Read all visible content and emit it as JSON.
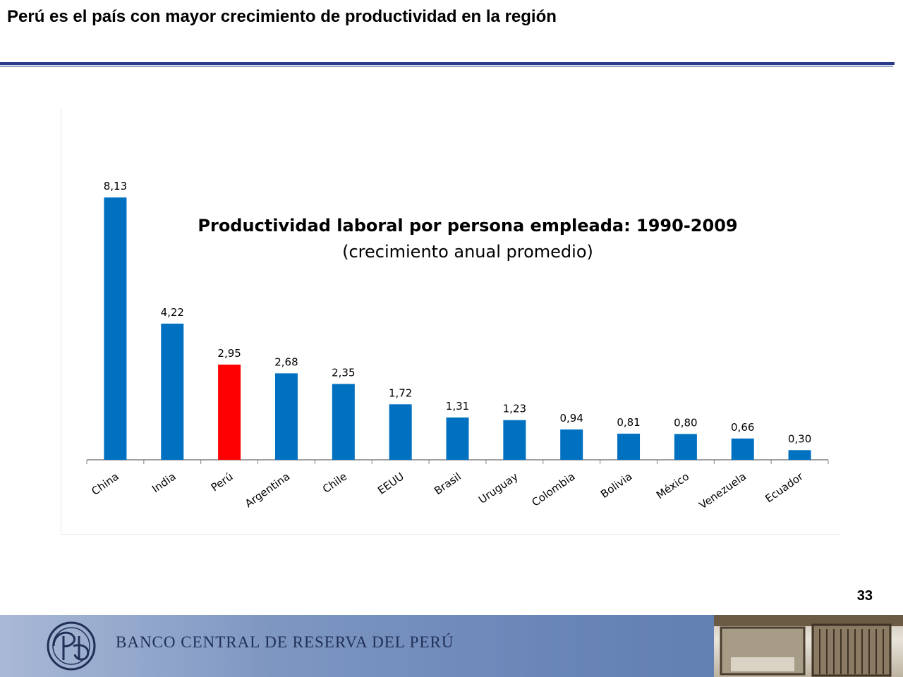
{
  "slide": {
    "title": "Perú es el país con mayor crecimiento de productividad en la región",
    "page_number": "33",
    "bank_name": "BANCO CENTRAL DE RESERVA DEL PERÚ",
    "rule_color": "#2b3a8a"
  },
  "chart_data": {
    "type": "bar",
    "title": "Productividad laboral por persona empleada: 1990-2009",
    "subtitle": "(crecimiento anual promedio)",
    "xlabel": "",
    "ylabel": "",
    "ylim": [
      0,
      9
    ],
    "grid": false,
    "categories": [
      "China",
      "India",
      "Perú",
      "Argentina",
      "Chile",
      "EEUU",
      "Brasil",
      "Uruguay",
      "Colombia",
      "Bolivia",
      "México",
      "Venezuela",
      "Ecuador"
    ],
    "values": [
      8.13,
      4.22,
      2.95,
      2.68,
      2.35,
      1.72,
      1.31,
      1.23,
      0.94,
      0.81,
      0.8,
      0.66,
      0.3
    ],
    "value_labels": [
      "8,13",
      "4,22",
      "2,95",
      "2,68",
      "2,35",
      "1,72",
      "1,31",
      "1,23",
      "0,94",
      "0,81",
      "0,80",
      "0,66",
      "0,30"
    ],
    "highlight_category": "Perú",
    "colors": {
      "bar": "#0070c0",
      "highlight": "#ff0000"
    }
  }
}
